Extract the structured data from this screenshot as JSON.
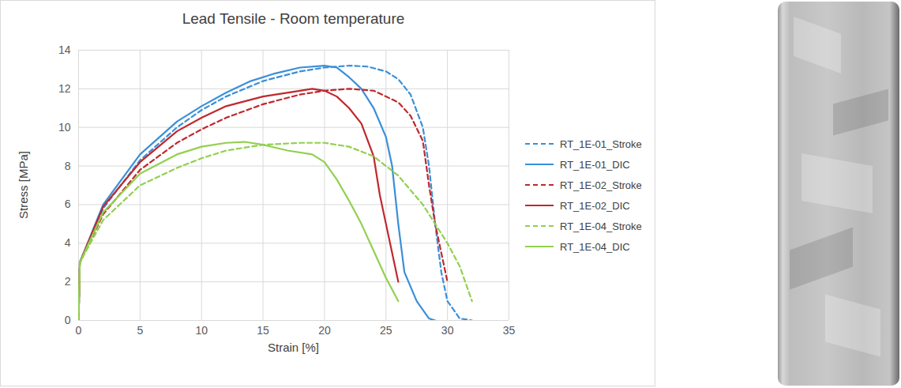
{
  "chart_data": {
    "type": "line",
    "title": "Lead Tensile - Room temperature",
    "x_label": "Strain [%]",
    "y_label": "Stress [MPa]",
    "xlim": [
      0,
      35
    ],
    "ylim": [
      0,
      14
    ],
    "xticks": [
      0,
      5,
      10,
      15,
      20,
      25,
      30,
      35
    ],
    "yticks": [
      0,
      2,
      4,
      6,
      8,
      10,
      12,
      14
    ],
    "grid": true,
    "legend": "right",
    "series": [
      {
        "name": "RT_1E-01_Stroke",
        "color": "#3a8fd8",
        "line_style": "dashed",
        "x": [
          0,
          0.1,
          2,
          5,
          8,
          10,
          12,
          15,
          18,
          20,
          22,
          23.5,
          25,
          26,
          27,
          28,
          28.5,
          29,
          29.5,
          30,
          31,
          32
        ],
        "values": [
          0,
          3,
          5.8,
          8.3,
          10,
          10.9,
          11.6,
          12.4,
          12.9,
          13.1,
          13.2,
          13.15,
          12.9,
          12.5,
          11.7,
          10,
          8,
          5,
          2.5,
          1,
          0.1,
          0
        ]
      },
      {
        "name": "RT_1E-01_DIC",
        "color": "#3a8fd8",
        "line_style": "solid",
        "x": [
          0,
          0.1,
          2,
          5,
          8,
          10,
          12,
          14,
          16,
          18,
          20,
          21,
          22,
          23,
          24,
          25,
          25.5,
          26,
          26.5,
          27.5,
          28.5,
          29
        ],
        "values": [
          0,
          3,
          6,
          8.6,
          10.3,
          11.1,
          11.8,
          12.4,
          12.8,
          13.1,
          13.2,
          13.1,
          12.6,
          12,
          11,
          9.5,
          8,
          5,
          2.5,
          1,
          0.1,
          0
        ]
      },
      {
        "name": "RT_1E-02_Stroke",
        "color": "#c0282d",
        "line_style": "dashed",
        "x": [
          0,
          0.1,
          2,
          5,
          8,
          10,
          12,
          15,
          18,
          20,
          22,
          24,
          26,
          27,
          28,
          28.5,
          29,
          29.5,
          30
        ],
        "values": [
          0,
          3,
          5.5,
          7.8,
          9.2,
          9.9,
          10.5,
          11.2,
          11.7,
          11.9,
          12,
          11.9,
          11.3,
          10.6,
          9.3,
          7,
          5,
          3.5,
          2
        ]
      },
      {
        "name": "RT_1E-02_DIC",
        "color": "#c0282d",
        "line_style": "solid",
        "x": [
          0,
          0.1,
          2,
          5,
          8,
          10,
          12,
          15,
          18,
          19,
          20,
          21,
          22,
          23,
          24,
          24.5,
          25,
          25.5,
          26
        ],
        "values": [
          0,
          3,
          5.9,
          8.2,
          9.8,
          10.5,
          11.1,
          11.6,
          11.9,
          12,
          11.9,
          11.6,
          11,
          10.2,
          8.5,
          6.5,
          5,
          3.5,
          2
        ]
      },
      {
        "name": "RT_1E-04_Stroke",
        "color": "#92d050",
        "line_style": "dashed",
        "x": [
          0,
          0.1,
          2,
          5,
          8,
          10,
          12,
          15,
          18,
          20,
          22,
          24,
          26,
          28,
          30,
          31,
          32
        ],
        "values": [
          0,
          3,
          5.2,
          7,
          7.9,
          8.4,
          8.8,
          9.1,
          9.2,
          9.2,
          9,
          8.5,
          7.5,
          6,
          4,
          2.8,
          1
        ]
      },
      {
        "name": "RT_1E-04_DIC",
        "color": "#92d050",
        "line_style": "solid",
        "x": [
          0,
          0.1,
          2,
          5,
          8,
          10,
          12,
          13.5,
          15,
          17,
          19,
          20,
          21,
          22,
          23,
          24,
          25,
          26
        ],
        "values": [
          0,
          3,
          5.6,
          7.6,
          8.6,
          9,
          9.2,
          9.25,
          9.1,
          8.8,
          8.6,
          8.2,
          7.3,
          6.2,
          5,
          3.6,
          2.2,
          1
        ]
      }
    ]
  }
}
